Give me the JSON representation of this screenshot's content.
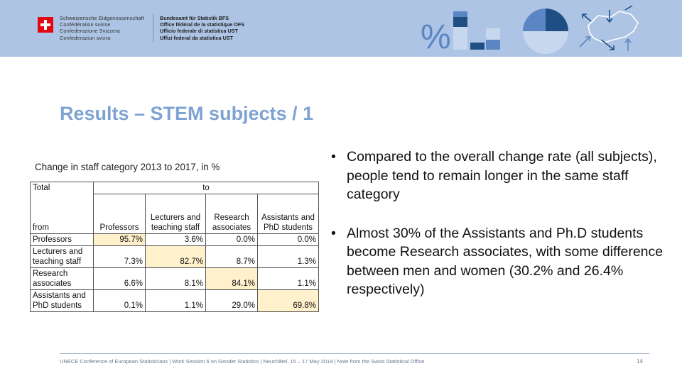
{
  "header": {
    "confederation": [
      "Schweizerische Eidgenossenschaft",
      "Confédération suisse",
      "Confederazione Svizzera",
      "Confederaziun svizra"
    ],
    "office": [
      "Bundesamt für Statistik BFS",
      "Office fédéral de la statistique OFS",
      "Ufficio federale di statistica UST",
      "Uffizi federal da statistica UST"
    ],
    "percent_symbol": "%",
    "colors": {
      "band": "#adc4e4",
      "dark_blue": "#1f4e85",
      "mid_blue": "#5b86c4",
      "light_blue": "#c7d7ee"
    }
  },
  "title": "Results – STEM subjects / 1",
  "table": {
    "caption": "Change in staff category 2013 to 2017, in %",
    "corner_label": "Total",
    "to_label": "to",
    "from_label": "from",
    "columns": [
      "Professors",
      "Lecturers and teaching staff",
      "Research associates",
      "Assistants and PhD students"
    ],
    "rows": [
      {
        "label": "Professors",
        "values": [
          "95.7%",
          "3.6%",
          "0.0%",
          "0.0%"
        ]
      },
      {
        "label": "Lecturers and teaching staff",
        "values": [
          "7.3%",
          "82.7%",
          "8.7%",
          "1.3%"
        ]
      },
      {
        "label": "Research associates",
        "values": [
          "6.6%",
          "8.1%",
          "84.1%",
          "1.1%"
        ]
      },
      {
        "label": "Assistants and PhD students",
        "values": [
          "0.1%",
          "1.1%",
          "29.0%",
          "69.8%"
        ]
      }
    ],
    "highlight_color": "#fff1cc"
  },
  "bullets": [
    "Compared to the overall change rate (all subjects), people tend to remain longer in the same staff category",
    "Almost 30% of the Assistants and Ph.D students become Research associates, with some difference between men and women (30.2% and 26.4% respectively)"
  ],
  "bullet_symbol": "•",
  "footer": {
    "text": "UNECE Conference of European Statisticians | Work Session 6 on Gender Statistics | Neuchâtel, 15 – 17 May 2019 | Note from the Swiss Statistical Office",
    "page": "14"
  }
}
